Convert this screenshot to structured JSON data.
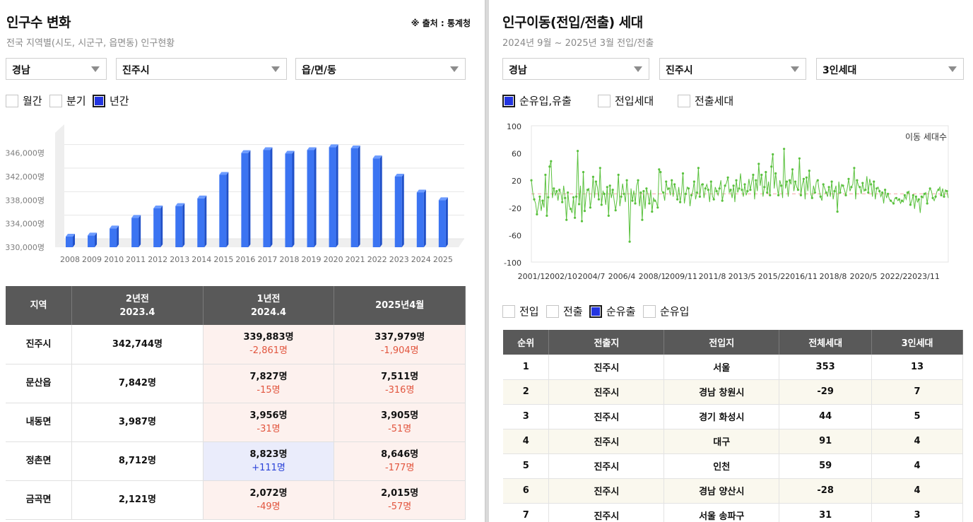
{
  "left": {
    "title": "인구수 변화",
    "source": "※ 출처 : 통계청",
    "subtitle": "전국 지역별(시도, 시군구, 읍면동) 인구현황",
    "selects": [
      "경남",
      "진주시",
      "읍/면/동"
    ],
    "checks": [
      {
        "label": "월간",
        "checked": false
      },
      {
        "label": "분기",
        "checked": false
      },
      {
        "label": "년간",
        "checked": true
      }
    ],
    "table": {
      "headers": [
        [
          "지역"
        ],
        [
          "2년전",
          "2023.4"
        ],
        [
          "1년전",
          "2024.4"
        ],
        [
          "2025년4월"
        ]
      ],
      "rows": [
        {
          "region": "진주시",
          "y2": "342,744명",
          "y1": "339,883명",
          "y1d": "-2,861명",
          "y1s": "neg",
          "y0": "337,979명",
          "y0d": "-1,904명",
          "y0s": "neg"
        },
        {
          "region": "문산읍",
          "y2": "7,842명",
          "y1": "7,827명",
          "y1d": "-15명",
          "y1s": "neg",
          "y0": "7,511명",
          "y0d": "-316명",
          "y0s": "neg"
        },
        {
          "region": "내동면",
          "y2": "3,987명",
          "y1": "3,956명",
          "y1d": "-31명",
          "y1s": "neg",
          "y0": "3,905명",
          "y0d": "-51명",
          "y0s": "neg"
        },
        {
          "region": "정촌면",
          "y2": "8,712명",
          "y1": "8,823명",
          "y1d": "+111명",
          "y1s": "pos",
          "y0": "8,646명",
          "y0d": "-177명",
          "y0s": "neg"
        },
        {
          "region": "금곡면",
          "y2": "2,121명",
          "y1": "2,072명",
          "y1d": "-49명",
          "y1s": "neg",
          "y0": "2,015명",
          "y0d": "-57명",
          "y0s": "neg"
        }
      ]
    }
  },
  "right": {
    "title": "인구이동(전입/전출) 세대",
    "subtitle": "2024년 9월 ~ 2025년 3월 전입/전출",
    "selects": [
      "경남",
      "진주시",
      "3인세대"
    ],
    "checks": [
      {
        "label": "순유입,유출",
        "checked": true
      },
      {
        "label": "전입세대",
        "checked": false
      },
      {
        "label": "전출세대",
        "checked": false
      }
    ],
    "checks2": [
      {
        "label": "전입",
        "checked": false
      },
      {
        "label": "전출",
        "checked": false
      },
      {
        "label": "순유출",
        "checked": true
      },
      {
        "label": "순유입",
        "checked": false
      }
    ],
    "table": {
      "headers": [
        "순위",
        "전출지",
        "전입지",
        "전체세대",
        "3인세대"
      ],
      "rows": [
        [
          "1",
          "진주시",
          "서울",
          "353",
          "13"
        ],
        [
          "2",
          "진주시",
          "경남 창원시",
          "-29",
          "7"
        ],
        [
          "3",
          "진주시",
          "경기 화성시",
          "44",
          "5"
        ],
        [
          "4",
          "진주시",
          "대구",
          "91",
          "4"
        ],
        [
          "5",
          "진주시",
          "인천",
          "59",
          "4"
        ],
        [
          "6",
          "진주시",
          "경남 양산시",
          "-28",
          "4"
        ],
        [
          "7",
          "진주시",
          "서울 송파구",
          "31",
          "3"
        ]
      ]
    }
  },
  "chart_data": [
    {
      "type": "bar",
      "categories": [
        "2008",
        "2009",
        "2010",
        "2011",
        "2012",
        "2013",
        "2014",
        "2015",
        "2016",
        "2017",
        "2018",
        "2019",
        "2020",
        "2021",
        "2022",
        "2023",
        "2024",
        "2025"
      ],
      "values": [
        331800,
        332000,
        333200,
        335000,
        336600,
        337000,
        338300,
        342300,
        346000,
        346500,
        345900,
        346500,
        347000,
        346800,
        345100,
        342000,
        339300,
        338000
      ],
      "yticks": [
        "330,000명",
        "334,000명",
        "338,000명",
        "342,000명",
        "346,000명"
      ],
      "ylim": [
        330000,
        348000
      ],
      "color": "#3b74f2",
      "grid": true
    },
    {
      "type": "line",
      "legend": "이동 세대수",
      "xticks": [
        "2001/1",
        "2002/10",
        "2004/7",
        "2006/4",
        "2008/1",
        "2009/11",
        "2011/8",
        "2013/5",
        "2015/2",
        "2016/11",
        "2018/8",
        "2020/5",
        "2022/2",
        "2023/11"
      ],
      "yticks": [
        "100",
        "60",
        "20",
        "-20",
        "-60",
        "-100"
      ],
      "ylim": [
        -100,
        100
      ],
      "xlim": [
        "2001/1",
        "2025/3"
      ],
      "color": "#5ac13e",
      "zero_line_color": "#f4a6a6",
      "values": [
        20,
        2,
        -8,
        -14,
        -30,
        -18,
        -4,
        -25,
        -10,
        -20,
        28,
        -32,
        -5,
        40,
        48,
        -6,
        8,
        -2,
        4,
        -10,
        6,
        2,
        -12,
        12,
        -6,
        -38,
        2,
        -18,
        -22,
        -28,
        -5,
        -35,
        -4,
        63,
        -15,
        12,
        -40,
        32,
        -25,
        -2,
        6,
        8,
        -20,
        -4,
        25,
        -6,
        18,
        10,
        -8,
        38,
        -16,
        4,
        0,
        -16,
        10,
        -32,
        12,
        -6,
        6,
        -10,
        -24,
        -8,
        28,
        -18,
        -4,
        15,
        0,
        -12,
        20,
        -2,
        -70,
        8,
        -10,
        5,
        -14,
        12,
        20,
        -18,
        2,
        -38,
        4,
        -22,
        8,
        0,
        -14,
        6,
        -26,
        -6,
        -10,
        -12,
        -20,
        36,
        32,
        4,
        2,
        -10,
        18,
        6,
        8,
        -2,
        20,
        -4,
        14,
        6,
        -8,
        10,
        -12,
        2,
        30,
        -14,
        0,
        10,
        8,
        -18,
        -2,
        4,
        18,
        -8,
        2,
        38,
        -4,
        14,
        14,
        -6,
        8,
        14,
        6,
        -12,
        18,
        -4,
        -8,
        10,
        4,
        -2,
        8,
        20,
        -10,
        2,
        12,
        16,
        24,
        2,
        6,
        -6,
        12,
        -12,
        20,
        2,
        8,
        30,
        6,
        -4,
        14,
        -2,
        4,
        22,
        6,
        18,
        28,
        -8,
        20,
        4,
        44,
        12,
        28,
        -4,
        10,
        32,
        2,
        18,
        -2,
        40,
        58,
        8,
        30,
        12,
        -2,
        20,
        12,
        -6,
        66,
        8,
        18,
        -4,
        20,
        14,
        36,
        4,
        18,
        10,
        6,
        52,
        -2,
        14,
        22,
        -8,
        24,
        4,
        34,
        0,
        -6,
        12,
        2,
        18,
        20,
        6,
        -4,
        -10,
        14,
        8,
        2,
        -4,
        10,
        -4,
        18,
        -8,
        4,
        12,
        -26,
        18,
        2,
        14,
        12,
        6,
        -2,
        8,
        22,
        4,
        10,
        14,
        38,
        -8,
        20,
        12,
        10,
        0,
        16,
        4,
        6,
        26,
        2,
        22,
        14,
        -4,
        18,
        -8,
        8,
        10,
        4,
        -4,
        2,
        -14,
        6,
        -6,
        0,
        -8,
        -10,
        -12,
        -14,
        -6,
        -6,
        -10,
        -8,
        -14,
        -10,
        -12,
        -2,
        -8,
        2,
        4,
        -16,
        -10,
        -2,
        -22,
        -4,
        -12,
        -8,
        -28,
        -4,
        -6,
        0,
        2,
        -14,
        2,
        8,
        4,
        -6,
        -10,
        -4,
        4,
        6,
        10,
        -2,
        8,
        -4,
        6,
        4,
        -6
      ]
    }
  ]
}
